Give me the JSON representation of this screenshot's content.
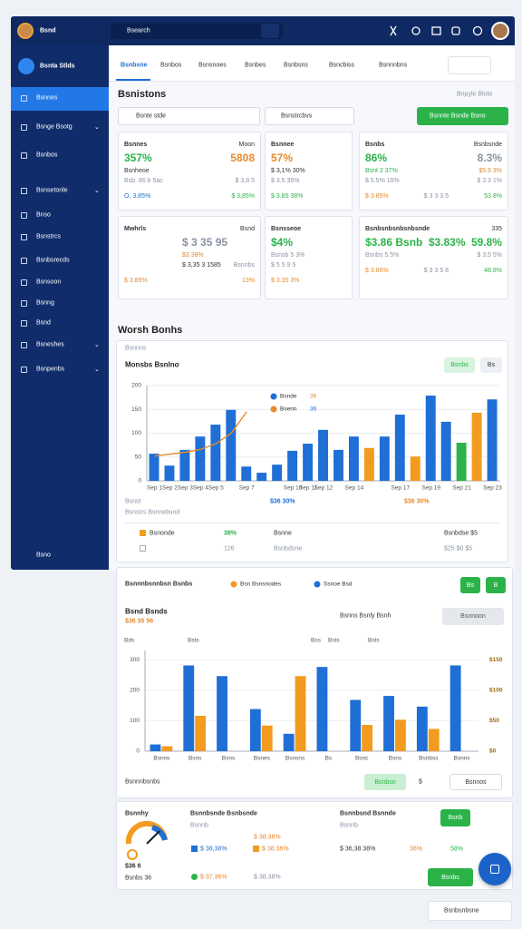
{
  "header": {
    "logo": "Bsnd",
    "search": "Bsearch"
  },
  "sidebar": {
    "brand": "Bsnta Stlds",
    "items": [
      "Bsnnes",
      "Bsnge Bsotg",
      "Bsnbos",
      "Bsnsetonle",
      "Bnso",
      "Bsnstrcs",
      "Bsnbsrecds",
      "Bsnsoon",
      "Bsnng",
      "Bsnd",
      "Bsneshes",
      "Bsnpenbs"
    ],
    "footer": "Bsno"
  },
  "tabs": [
    "Bsnbsne",
    "Bsnbos",
    "Bsnsnoes",
    "Bsnbes",
    "Bsnbsns",
    "Bsncbiss",
    "Bsnnnbns"
  ],
  "page": {
    "title": "Bsnistons",
    "link": "Bnpyle Bloto",
    "search": "Bsnte stde",
    "filter": "Bsnstrcbvs",
    "button": "Bsnnte Bsnde Bsno"
  },
  "kpis": [
    {
      "title": "Bsnnes",
      "tag": "Moon",
      "rows": [
        [
          {
            "text": "357%",
            "tone": "green"
          },
          {
            "text": "5808",
            "tone": "orange"
          }
        ],
        [
          {
            "text": "Bsnheoe",
            "tone": "dark"
          }
        ],
        [
          {
            "text": "Bsb. 86 b 5ac",
            "tone": "muted"
          },
          {
            "text": "$ 3,8 5",
            "tone": "muted"
          }
        ],
        [
          {
            "text": "O, 3,85%",
            "tone": "blue"
          },
          {
            "text": "$ 3,85%",
            "tone": "green"
          }
        ]
      ]
    },
    {
      "title": "Bsnnee",
      "rows": [
        [
          {
            "text": "57%",
            "tone": "orange"
          }
        ],
        [
          {
            "text": "$ 3,1% 30%",
            "tone": "dark"
          }
        ],
        [
          {
            "text": "$ 3.5 35%",
            "tone": "muted"
          }
        ],
        [
          {
            "text": "$ 3.85 38%",
            "tone": "green"
          }
        ]
      ]
    },
    {
      "title": "Bsnbs",
      "tag": "Bsnbsnde",
      "rows": [
        [
          {
            "text": "86%",
            "tone": "green"
          },
          {
            "text": "8.3%",
            "tone": "muted"
          }
        ],
        [
          {
            "text": "Bsnt 2 37%",
            "tone": "green"
          },
          {
            "text": "$5.9 3%",
            "tone": "orange"
          }
        ],
        [
          {
            "text": "$ 5.5% 10%",
            "tone": "muted"
          },
          {
            "text": "$ 3 3 1%",
            "tone": "muted"
          }
        ],
        [
          {
            "text": "$ 3.85%",
            "tone": "orange"
          },
          {
            "text": "$ 3 3 3 5",
            "tone": "muted"
          },
          {
            "text": "53.8%",
            "tone": "green"
          }
        ]
      ]
    },
    {
      "title": "Mwhrls",
      "tag": "Bsnd",
      "rows": [
        [
          {
            "text": "$ 3 35 95",
            "tone": "muted"
          }
        ],
        [
          {
            "text": "$3.38%",
            "tone": "orange"
          }
        ],
        [
          {
            "text": "$ 3,35 3 1585",
            "tone": "dark"
          },
          {
            "text": "Bsnnbs",
            "tone": "muted"
          }
        ],
        [
          {
            "text": "$ 3.85%",
            "tone": "orange"
          },
          {
            "text": "13%",
            "tone": "orange"
          }
        ]
      ]
    },
    {
      "title": "Bsnsseoe",
      "rows": [
        [
          {
            "text": "$4%",
            "tone": "green"
          }
        ],
        [
          {
            "text": "Bsnsb 5 3%",
            "tone": "muted"
          }
        ],
        [
          {
            "text": "$ 5 5 9 5",
            "tone": "muted"
          }
        ],
        [
          {
            "text": "$ 3.35 3%",
            "tone": "orange"
          }
        ]
      ]
    },
    {
      "title": "Bsnbsnbsnbsnbsnde",
      "tag": "335",
      "rows": [
        [
          {
            "text": "$3.86 Bsnb",
            "tone": "green"
          },
          {
            "text": "$3.83%",
            "tone": "green"
          },
          {
            "text": "59.8%",
            "tone": "green"
          }
        ],
        [
          {
            "text": "Bsnbs 5.5%",
            "tone": "muted"
          },
          {
            "text": "$ 3.5 5%",
            "tone": "muted"
          }
        ],
        [
          {
            "text": "$ 3.85%",
            "tone": "orange"
          },
          {
            "text": "$ 3 3 5 8",
            "tone": "muted"
          },
          {
            "text": "48.8%",
            "tone": "green"
          }
        ]
      ]
    }
  ],
  "section_title": "Worsh Bonhs",
  "panel1": {
    "label": "Bsnnns",
    "buttons": [
      "Bsnbs",
      "Bs"
    ],
    "notes": [
      "Bsnst",
      "$36 30%",
      "$36 30%"
    ],
    "summary": [
      [
        "Bsnonde",
        "38%",
        "Bsnne",
        "Bsnbdse $5"
      ],
      [
        "126",
        "Bsnbdsne",
        "$25 $0 $5"
      ]
    ]
  },
  "panel2": {
    "heading": "Bsnnnbsnnbsn Bsnbs",
    "buttons": [
      "Bs",
      "B"
    ],
    "center": "Bsnns Bsnly Bsnh",
    "dropdown": "Bsnnoon",
    "footer": "Bsnnnbsnbs",
    "controls": [
      "Bsnbsn",
      "$",
      "Bsnnos"
    ]
  },
  "chart_data": [
    {
      "type": "bar",
      "title": "Monsbs Bsnlno",
      "x_label": "Bsnstrs Bsnnebsnd",
      "grid": true,
      "categories": [
        "Sep 1",
        "Sep 2",
        "Sep 3",
        "Sep 4",
        "Sep 5",
        null,
        "Sep 7",
        null,
        null,
        "Sep 10",
        "Sep 11",
        "Sep 12",
        null,
        "Sep 14",
        null,
        null,
        "Sep 17",
        null,
        "Sep 19",
        null,
        "Sep 21",
        null,
        "Sep 23"
      ],
      "ylim": [
        0,
        200
      ],
      "yticks": [
        0,
        50,
        100,
        150,
        200
      ],
      "series": [
        {
          "name": "Bsnde",
          "legend_value": "36",
          "color": "#1f6fd6",
          "colors": [
            "#1f6fd6",
            "#1f6fd6",
            "#1f6fd6",
            "#1f6fd6",
            "#1f6fd6",
            "#1f6fd6",
            "#1f6fd6",
            "#1f6fd6",
            "#1f6fd6",
            "#1f6fd6",
            "#1f6fd6",
            "#1f6fd6",
            "#1f6fd6",
            "#1f6fd6",
            "#f29b1f",
            "#1f6fd6",
            "#1f6fd6",
            "#f29b1f",
            "#1f6fd6",
            "#1f6fd6",
            "#2bb34a",
            "#f29b1f",
            "#1f6fd6"
          ],
          "values": [
            57,
            32,
            65,
            93,
            118,
            149,
            30,
            17,
            34,
            63,
            78,
            107,
            65,
            93,
            69,
            93,
            139,
            51,
            179,
            124,
            80,
            143,
            171
          ]
        },
        {
          "name": "Bsenn",
          "legend_value": "36",
          "type": "line",
          "color": "#e8892a",
          "values": [
            52,
            56,
            60,
            66,
            78,
            100,
            145,
            null,
            null,
            null,
            null,
            null,
            null,
            null,
            null,
            null,
            null,
            null,
            null,
            null,
            null,
            null,
            null
          ]
        }
      ]
    },
    {
      "type": "bar",
      "title": "Bsnd Bsnds",
      "subtitle": "$36 35 56",
      "grid": true,
      "annotations": [
        "Bds",
        "Bsts",
        "Bss",
        "Bsts",
        "Bsts"
      ],
      "categories": [
        "Bsnns",
        "Bsns",
        "Bsns",
        "Bsnes",
        "Bsnsns",
        "Bs",
        "Bsnc",
        "Bsns",
        "Bsnbss",
        "Bsnns"
      ],
      "ylim": [
        0,
        330
      ],
      "yticks": [
        0,
        100,
        200,
        300
      ],
      "y2lim": [
        0,
        165
      ],
      "y2ticks": [
        {
          "value": 0,
          "label": "$0"
        },
        {
          "value": 50,
          "label": "$50"
        },
        {
          "value": 100,
          "label": "$100"
        },
        {
          "value": 150,
          "label": "$150"
        }
      ],
      "series": [
        {
          "name": "Ssnoe Bsd",
          "color": "#1f6fd6",
          "values": [
            22,
            281,
            246,
            138,
            57,
            276,
            168,
            181,
            146,
            281
          ]
        },
        {
          "name": "Bsn Bsnsnodes",
          "color": "#f29b1f",
          "values": [
            16,
            116,
            null,
            84,
            246,
            null,
            86,
            103,
            73,
            null
          ]
        }
      ]
    }
  ],
  "summary_card": {
    "title": "Bsnnhy",
    "value": "$36 6",
    "sub": "Bsnbs 36",
    "middle": {
      "title": "Bsnnbsnde Bsnbsnde",
      "sub": "Bsnnb",
      "rows": [
        "$ 38,38%",
        "$ 38,38%",
        "$ 38.36%",
        "$ 37.36%",
        "$ 38,38%"
      ]
    },
    "right": {
      "title": "Bsnnbsnd Bsnnde",
      "sub": "Bsnnb",
      "rows": [
        "$ 36,38 38%",
        "38%",
        "58%"
      ]
    },
    "buttons": [
      "Bsnb",
      "Bsnbs"
    ]
  },
  "footer_pill": "Bsnbsnbsne"
}
